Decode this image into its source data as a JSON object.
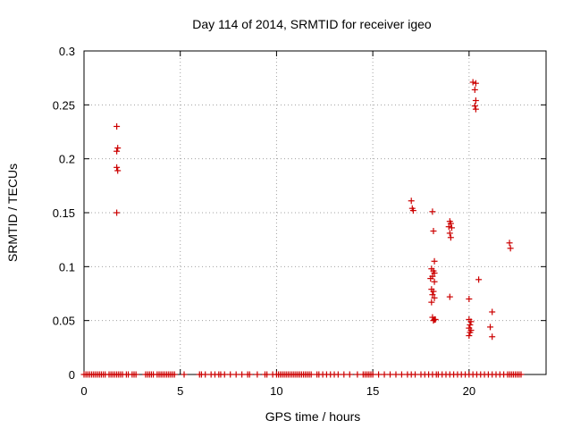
{
  "chart_data": {
    "type": "scatter",
    "title": "Day 114 of 2014, SRMTID for receiver igeo",
    "xlabel": "GPS time / hours",
    "ylabel": "SRMTID / TECUs",
    "xlim": [
      0,
      24
    ],
    "ylim": [
      0,
      0.3
    ],
    "xticks": [
      0,
      5,
      10,
      15,
      20
    ],
    "xtick_labels": [
      "0",
      "5",
      "10",
      "15",
      "20"
    ],
    "yticks": [
      0,
      0.05,
      0.1,
      0.15,
      0.2,
      0.25,
      0.3
    ],
    "ytick_labels": [
      "0",
      "0.05",
      "0.1",
      "0.15",
      "0.2",
      "0.25",
      "0.3"
    ],
    "grid": true,
    "marker": "plus",
    "marker_color": "#cc0000",
    "series": [
      {
        "name": "SRMTID",
        "points": [
          [
            1.7,
            0.23
          ],
          [
            1.75,
            0.21
          ],
          [
            1.7,
            0.207
          ],
          [
            1.7,
            0.192
          ],
          [
            1.75,
            0.189
          ],
          [
            1.7,
            0.15
          ],
          [
            17.0,
            0.161
          ],
          [
            17.05,
            0.154
          ],
          [
            17.1,
            0.152
          ],
          [
            18.1,
            0.151
          ],
          [
            18.15,
            0.133
          ],
          [
            18.2,
            0.105
          ],
          [
            18.05,
            0.098
          ],
          [
            18.15,
            0.096
          ],
          [
            18.2,
            0.094
          ],
          [
            18.1,
            0.091
          ],
          [
            18.0,
            0.089
          ],
          [
            18.2,
            0.086
          ],
          [
            18.05,
            0.079
          ],
          [
            18.15,
            0.077
          ],
          [
            18.1,
            0.074
          ],
          [
            18.2,
            0.071
          ],
          [
            18.05,
            0.067
          ],
          [
            18.1,
            0.053
          ],
          [
            18.2,
            0.051
          ],
          [
            18.15,
            0.05
          ],
          [
            18.25,
            0.051
          ],
          [
            19.0,
            0.142
          ],
          [
            19.05,
            0.14
          ],
          [
            18.95,
            0.137
          ],
          [
            19.1,
            0.136
          ],
          [
            19.0,
            0.131
          ],
          [
            19.05,
            0.127
          ],
          [
            19.0,
            0.072
          ],
          [
            20.2,
            0.271
          ],
          [
            20.35,
            0.27
          ],
          [
            20.3,
            0.264
          ],
          [
            20.35,
            0.254
          ],
          [
            20.3,
            0.249
          ],
          [
            20.35,
            0.246
          ],
          [
            20.5,
            0.088
          ],
          [
            20.0,
            0.07
          ],
          [
            20.0,
            0.051
          ],
          [
            20.1,
            0.049
          ],
          [
            20.05,
            0.046
          ],
          [
            20.0,
            0.043
          ],
          [
            20.1,
            0.041
          ],
          [
            20.05,
            0.039
          ],
          [
            20.0,
            0.036
          ],
          [
            21.2,
            0.058
          ],
          [
            21.1,
            0.044
          ],
          [
            21.2,
            0.035
          ],
          [
            22.1,
            0.122
          ],
          [
            22.15,
            0.117
          ]
        ],
        "zero_hours": [
          0.0,
          0.1,
          0.2,
          0.3,
          0.4,
          0.5,
          0.6,
          0.7,
          0.8,
          0.9,
          1.0,
          1.1,
          1.3,
          1.4,
          1.5,
          1.6,
          1.7,
          1.8,
          1.9,
          2.0,
          2.2,
          2.3,
          2.5,
          2.6,
          2.7,
          3.2,
          3.3,
          3.4,
          3.5,
          3.6,
          3.8,
          3.9,
          4.0,
          4.1,
          4.2,
          4.3,
          4.4,
          4.5,
          4.6,
          4.7,
          5.2,
          6.0,
          6.1,
          6.3,
          6.6,
          6.8,
          7.0,
          7.1,
          7.3,
          7.6,
          7.9,
          8.2,
          8.5,
          8.6,
          9.0,
          9.4,
          9.5,
          9.8,
          10.0,
          10.1,
          10.2,
          10.3,
          10.4,
          10.5,
          10.6,
          10.7,
          10.8,
          10.9,
          11.0,
          11.1,
          11.2,
          11.3,
          11.4,
          11.5,
          11.6,
          11.7,
          11.8,
          12.1,
          12.2,
          12.4,
          12.6,
          12.8,
          13.0,
          13.2,
          13.5,
          13.8,
          14.2,
          14.5,
          14.6,
          14.7,
          14.8,
          14.9,
          15.0,
          15.3,
          15.6,
          15.9,
          16.2,
          16.5,
          16.8,
          17.0,
          17.2,
          17.5,
          17.7,
          17.9,
          18.1,
          18.3,
          18.4,
          18.6,
          18.8,
          19.0,
          19.2,
          19.4,
          19.6,
          19.8,
          20.0,
          20.2,
          20.4,
          20.6,
          20.8,
          21.0,
          21.2,
          21.4,
          21.6,
          21.8,
          22.0,
          22.1,
          22.2,
          22.3,
          22.4,
          22.5,
          22.6,
          22.7
        ]
      }
    ]
  }
}
